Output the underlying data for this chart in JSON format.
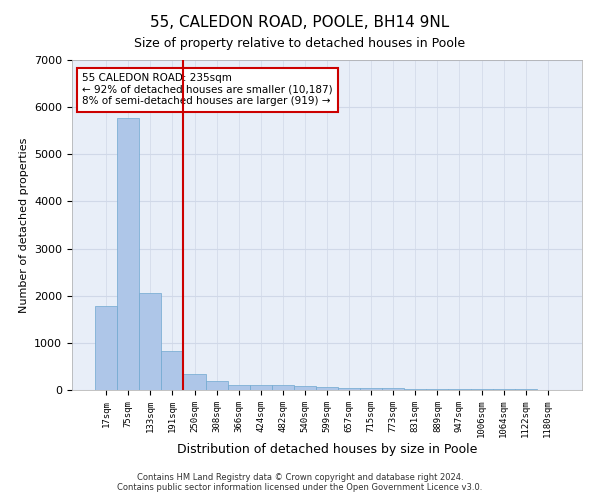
{
  "title": "55, CALEDON ROAD, POOLE, BH14 9NL",
  "subtitle": "Size of property relative to detached houses in Poole",
  "xlabel": "Distribution of detached houses by size in Poole",
  "ylabel": "Number of detached properties",
  "footer_line1": "Contains HM Land Registry data © Crown copyright and database right 2024.",
  "footer_line2": "Contains public sector information licensed under the Open Government Licence v3.0.",
  "bin_labels": [
    "17sqm",
    "75sqm",
    "133sqm",
    "191sqm",
    "250sqm",
    "308sqm",
    "366sqm",
    "424sqm",
    "482sqm",
    "540sqm",
    "599sqm",
    "657sqm",
    "715sqm",
    "773sqm",
    "831sqm",
    "889sqm",
    "947sqm",
    "1006sqm",
    "1064sqm",
    "1122sqm",
    "1180sqm"
  ],
  "bar_heights": [
    1780,
    5780,
    2060,
    820,
    340,
    185,
    110,
    100,
    100,
    75,
    60,
    50,
    40,
    35,
    30,
    25,
    20,
    18,
    15,
    12,
    10
  ],
  "bar_color": "#aec6e8",
  "bar_edge_color": "#6fa8d0",
  "property_line_color": "#cc0000",
  "annotation_text": "55 CALEDON ROAD: 235sqm\n← 92% of detached houses are smaller (10,187)\n8% of semi-detached houses are larger (919) →",
  "annotation_box_color": "#cc0000",
  "annotation_box_facecolor": "white",
  "ylim": [
    0,
    7000
  ],
  "yticks": [
    0,
    1000,
    2000,
    3000,
    4000,
    5000,
    6000,
    7000
  ],
  "grid_color": "#d0d8e8",
  "background_color": "#e8eef8",
  "title_fontsize": 11,
  "subtitle_fontsize": 9
}
